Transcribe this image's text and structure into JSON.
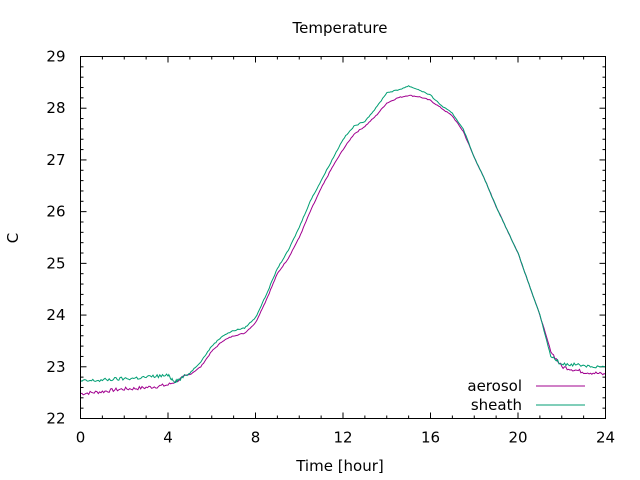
{
  "chart_data": {
    "type": "line",
    "title": "Temperature",
    "xlabel": "Time [hour]",
    "ylabel": "C",
    "xlim": [
      0,
      24
    ],
    "ylim": [
      22,
      29
    ],
    "xticks": [
      0,
      4,
      8,
      12,
      16,
      20,
      24
    ],
    "yticks": [
      22,
      23,
      24,
      25,
      26,
      27,
      28,
      29
    ],
    "grid": false,
    "legend_position": "bottom-right",
    "series": [
      {
        "name": "aerosol",
        "color": "#a0008f",
        "points": [
          [
            0,
            22.48
          ],
          [
            0.5,
            22.5
          ],
          [
            1,
            22.52
          ],
          [
            1.5,
            22.55
          ],
          [
            2,
            22.57
          ],
          [
            2.5,
            22.58
          ],
          [
            3,
            22.6
          ],
          [
            3.5,
            22.62
          ],
          [
            4,
            22.65
          ],
          [
            4.5,
            22.75
          ],
          [
            5,
            22.85
          ],
          [
            5.5,
            23.0
          ],
          [
            6,
            23.3
          ],
          [
            6.5,
            23.5
          ],
          [
            7,
            23.6
          ],
          [
            7.5,
            23.65
          ],
          [
            8,
            23.85
          ],
          [
            8.5,
            24.3
          ],
          [
            9,
            24.8
          ],
          [
            9.5,
            25.1
          ],
          [
            10,
            25.5
          ],
          [
            10.5,
            26.0
          ],
          [
            11,
            26.45
          ],
          [
            11.5,
            26.85
          ],
          [
            12,
            27.2
          ],
          [
            12.5,
            27.5
          ],
          [
            13,
            27.65
          ],
          [
            13.5,
            27.85
          ],
          [
            14,
            28.1
          ],
          [
            14.5,
            28.2
          ],
          [
            15,
            28.25
          ],
          [
            15.5,
            28.22
          ],
          [
            16,
            28.15
          ],
          [
            16.5,
            28.0
          ],
          [
            17,
            27.85
          ],
          [
            17.5,
            27.55
          ],
          [
            18,
            27.05
          ],
          [
            18.5,
            26.6
          ],
          [
            19,
            26.1
          ],
          [
            19.5,
            25.65
          ],
          [
            20,
            25.2
          ],
          [
            20.5,
            24.6
          ],
          [
            21,
            24.0
          ],
          [
            21.5,
            23.3
          ],
          [
            22,
            23.0
          ],
          [
            22.5,
            22.95
          ],
          [
            23,
            22.9
          ],
          [
            23.5,
            22.88
          ],
          [
            24,
            22.85
          ]
        ]
      },
      {
        "name": "sheath",
        "color": "#009e73",
        "points": [
          [
            0,
            22.72
          ],
          [
            0.5,
            22.73
          ],
          [
            1,
            22.74
          ],
          [
            1.5,
            22.76
          ],
          [
            2,
            22.77
          ],
          [
            2.5,
            22.78
          ],
          [
            3,
            22.8
          ],
          [
            3.5,
            22.82
          ],
          [
            4,
            22.83
          ],
          [
            4.3,
            22.72
          ],
          [
            4.5,
            22.75
          ],
          [
            5,
            22.88
          ],
          [
            5.5,
            23.1
          ],
          [
            6,
            23.4
          ],
          [
            6.5,
            23.6
          ],
          [
            7,
            23.7
          ],
          [
            7.5,
            23.75
          ],
          [
            8,
            23.95
          ],
          [
            8.5,
            24.4
          ],
          [
            9,
            24.9
          ],
          [
            9.5,
            25.25
          ],
          [
            10,
            25.7
          ],
          [
            10.5,
            26.2
          ],
          [
            11,
            26.6
          ],
          [
            11.5,
            27.0
          ],
          [
            12,
            27.4
          ],
          [
            12.5,
            27.65
          ],
          [
            13,
            27.75
          ],
          [
            13.5,
            28.0
          ],
          [
            14,
            28.3
          ],
          [
            14.5,
            28.35
          ],
          [
            15,
            28.43
          ],
          [
            15.5,
            28.35
          ],
          [
            16,
            28.25
          ],
          [
            16.5,
            28.05
          ],
          [
            17,
            27.9
          ],
          [
            17.5,
            27.6
          ],
          [
            18,
            27.05
          ],
          [
            18.5,
            26.6
          ],
          [
            19,
            26.1
          ],
          [
            19.5,
            25.65
          ],
          [
            20,
            25.2
          ],
          [
            20.5,
            24.6
          ],
          [
            21,
            24.0
          ],
          [
            21.5,
            23.2
          ],
          [
            22,
            23.05
          ],
          [
            22.5,
            23.05
          ],
          [
            23,
            23.03
          ],
          [
            23.5,
            23.0
          ],
          [
            24,
            23.0
          ]
        ]
      }
    ]
  }
}
